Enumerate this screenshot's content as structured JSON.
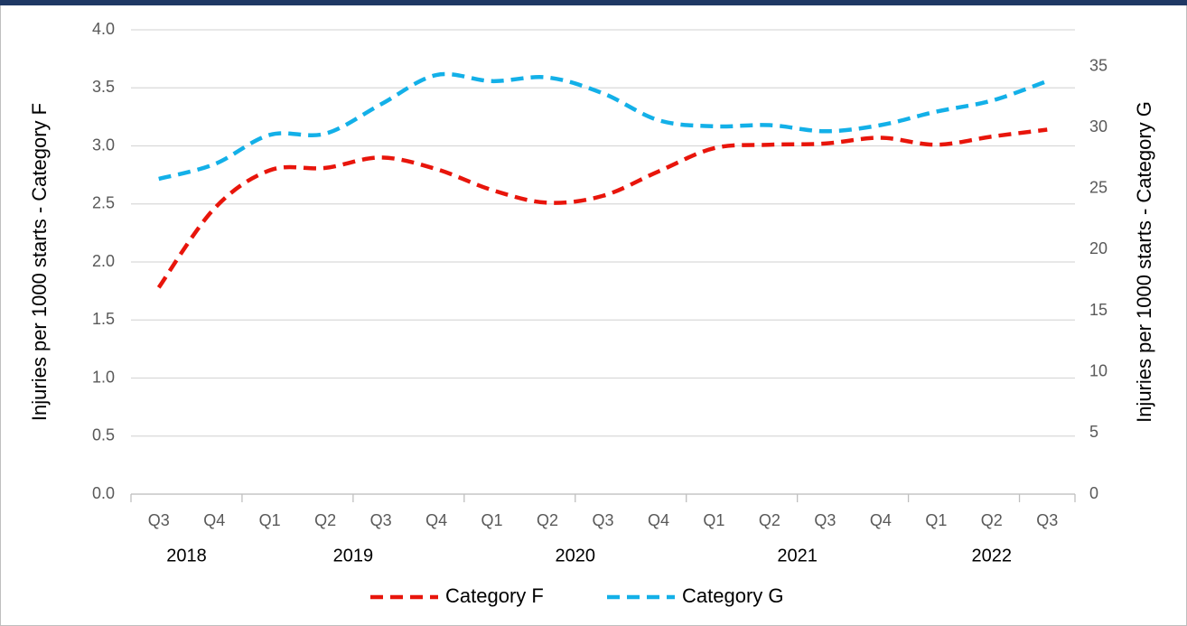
{
  "chart_data": {
    "type": "line",
    "y_label": "Injuries per 1000 starts - Category F",
    "y2_label": "Injuries per 1000 starts - Category G",
    "categories": [
      "Q3",
      "Q4",
      "Q1",
      "Q2",
      "Q3",
      "Q4",
      "Q1",
      "Q2",
      "Q3",
      "Q4",
      "Q1",
      "Q2",
      "Q3",
      "Q4",
      "Q1",
      "Q2",
      "Q3"
    ],
    "years": [
      "2018",
      null,
      "2019",
      null,
      null,
      null,
      "2020",
      null,
      null,
      null,
      "2021",
      null,
      null,
      null,
      "2022",
      null,
      null
    ],
    "series": [
      {
        "name": "Category F",
        "color": "#e8150b",
        "axis": "y",
        "values": [
          1.78,
          2.46,
          2.79,
          2.81,
          2.9,
          2.8,
          2.62,
          2.51,
          2.57,
          2.78,
          2.98,
          3.01,
          3.02,
          3.07,
          3.01,
          3.08,
          3.14
        ]
      },
      {
        "name": "Category G",
        "color": "#13b0e8",
        "axis": "y2",
        "values": [
          25.8,
          27.0,
          29.4,
          29.5,
          31.9,
          34.3,
          33.8,
          34.1,
          32.8,
          30.6,
          30.1,
          30.2,
          29.7,
          30.2,
          31.3,
          32.2,
          33.8
        ]
      }
    ],
    "ylim": [
      0,
      4
    ],
    "yticks": [
      {
        "value": 0,
        "label": "0.0"
      },
      {
        "value": 0.5,
        "label": "0.5"
      },
      {
        "value": 1,
        "label": "1.0"
      },
      {
        "value": 1.5,
        "label": "1.5"
      },
      {
        "value": 2,
        "label": "2.0"
      },
      {
        "value": 2.5,
        "label": "2.5"
      },
      {
        "value": 3,
        "label": "3.0"
      },
      {
        "value": 3.5,
        "label": "3.5"
      },
      {
        "value": 4,
        "label": "4.0"
      }
    ],
    "y2lim": [
      0,
      38
    ],
    "y2ticks": [
      0,
      5,
      10,
      15,
      20,
      25,
      30,
      35
    ],
    "grid": true,
    "smooth": true,
    "dashed": true,
    "legend": "bottom"
  }
}
